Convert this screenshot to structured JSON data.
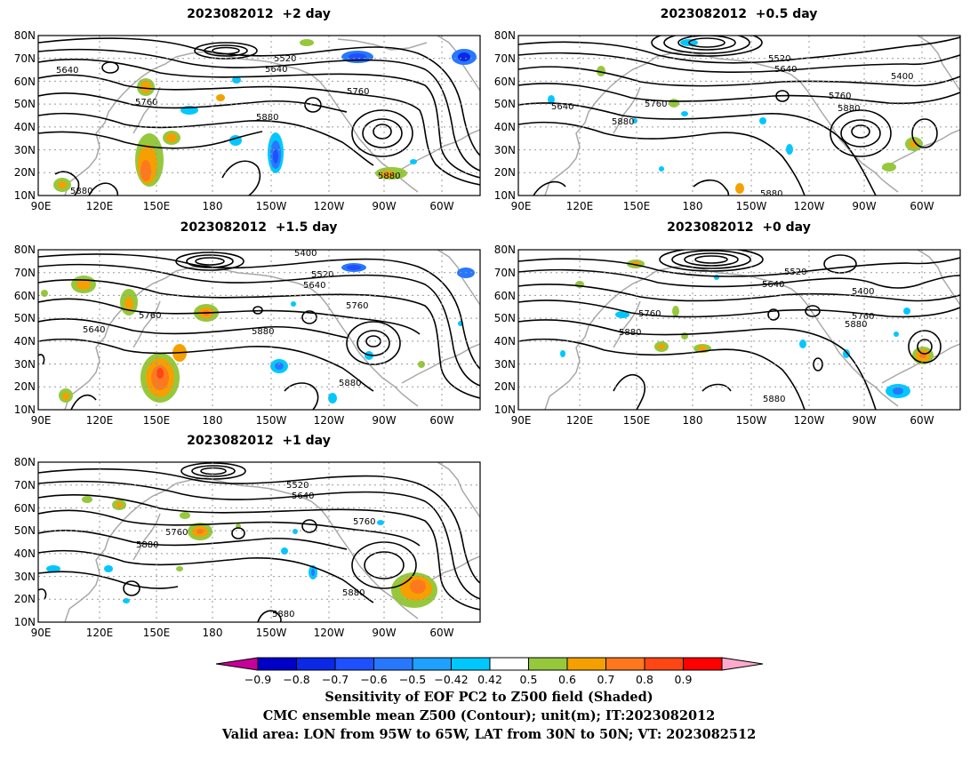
{
  "panels": [
    {
      "title": "2023082012  +2 day",
      "contour_labels": [
        "5640",
        "5520",
        "5640",
        "5760",
        "5760",
        "5880",
        "5880",
        "5880"
      ]
    },
    {
      "title": "2023082012  +0.5 day",
      "contour_labels": [
        "5520",
        "5640",
        "5400",
        "5760",
        "5880",
        "5640",
        "5760",
        "5880",
        "5880"
      ]
    },
    {
      "title": "2023082012  +1.5 day",
      "contour_labels": [
        "5400",
        "5520",
        "5640",
        "5760",
        "5760",
        "5640",
        "5880",
        "5880"
      ]
    },
    {
      "title": "2023082012  +0 day",
      "contour_labels": [
        "5520",
        "5640",
        "5400",
        "5760",
        "5880",
        "5760",
        "5880",
        "5880"
      ]
    },
    {
      "title": "2023082012  +1 day",
      "contour_labels": [
        "5520",
        "5640",
        "5760",
        "5760",
        "5880",
        "5880",
        "5880"
      ]
    }
  ],
  "axes": {
    "y_ticks": [
      "10N",
      "20N",
      "30N",
      "40N",
      "50N",
      "60N",
      "70N",
      "80N"
    ],
    "x_ticks": [
      "90E",
      "120E",
      "150E",
      "180",
      "150W",
      "120W",
      "90W",
      "60W"
    ]
  },
  "colorbar": {
    "labels": [
      "-0.9",
      "-0.8",
      "-0.7",
      "-0.6",
      "-0.5",
      "-0.42",
      "0.42",
      "0.5",
      "0.6",
      "0.7",
      "0.8",
      "0.9"
    ],
    "colors": [
      "#0000c8",
      "#0a28e6",
      "#1e50ff",
      "#2878ff",
      "#1ea0ff",
      "#00c8ff",
      "#ffffff",
      "#96c83c",
      "#f5a000",
      "#ff781e",
      "#ff4614",
      "#ff0000"
    ],
    "low_color": "#c8009b",
    "high_color": "#ffaacd"
  },
  "caption": {
    "line1": "Sensitivity of EOF PC2 to Z500 field (Shaded)",
    "line2": "CMC ensemble mean Z500 (Contour); unit(m); IT:2023082012",
    "line3": "Valid area: LON from 95W to 65W, LAT from 30N to 50N; VT: 2023082512"
  }
}
